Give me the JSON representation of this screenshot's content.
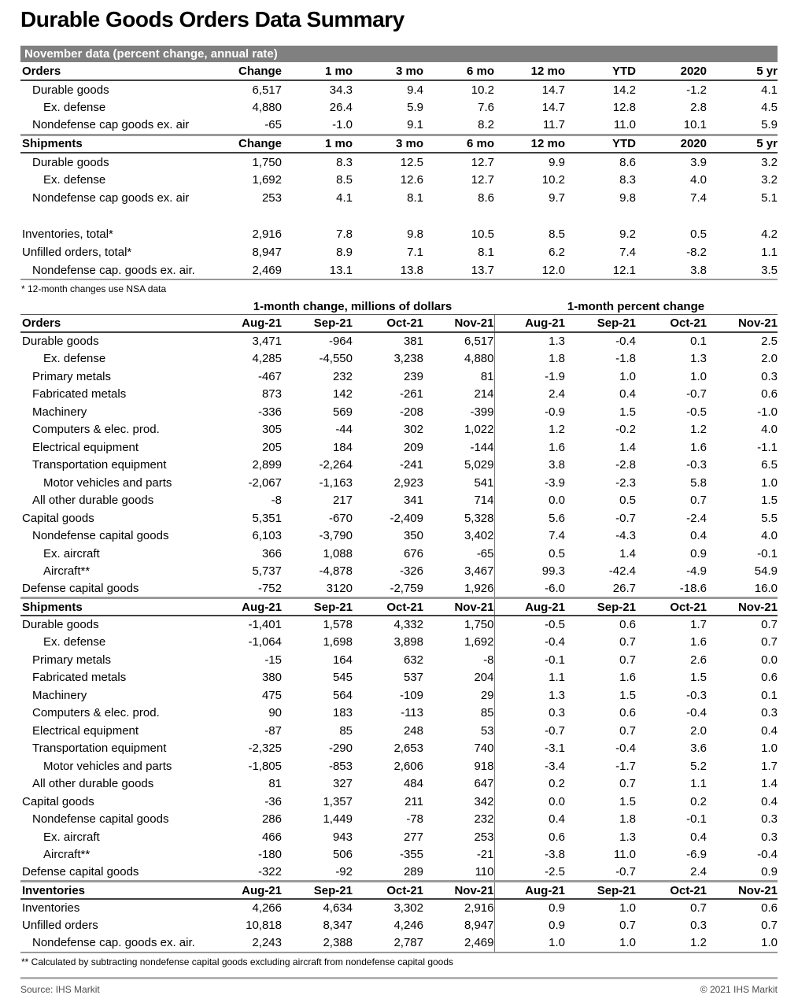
{
  "title": "Durable Goods Orders Data Summary",
  "banner": "November data (percent change, annual rate)",
  "colors": {
    "banner_bg": "#808080",
    "banner_text": "#ffffff"
  },
  "table1": {
    "columns": [
      "Change",
      "1 mo",
      "3 mo",
      "6 mo",
      "12 mo",
      "YTD",
      "2020",
      "5 yr"
    ],
    "sections": [
      {
        "label": "Orders",
        "rows": [
          {
            "label": "Durable goods",
            "indent": 1,
            "values": [
              "6,517",
              "34.3",
              "9.4",
              "10.2",
              "14.7",
              "14.2",
              "-1.2",
              "4.1"
            ]
          },
          {
            "label": "Ex. defense",
            "indent": 2,
            "values": [
              "4,880",
              "26.4",
              "5.9",
              "7.6",
              "14.7",
              "12.8",
              "2.8",
              "4.5"
            ]
          },
          {
            "label": "Nondefense cap goods ex. air",
            "indent": 1,
            "values": [
              "-65",
              "-1.0",
              "9.1",
              "8.2",
              "11.7",
              "11.0",
              "10.1",
              "5.9"
            ]
          }
        ]
      },
      {
        "label": "Shipments",
        "rows": [
          {
            "label": "Durable goods",
            "indent": 1,
            "values": [
              "1,750",
              "8.3",
              "12.5",
              "12.7",
              "9.9",
              "8.6",
              "3.9",
              "3.2"
            ]
          },
          {
            "label": "Ex. defense",
            "indent": 2,
            "values": [
              "1,692",
              "8.5",
              "12.6",
              "12.7",
              "10.2",
              "8.3",
              "4.0",
              "3.2"
            ]
          },
          {
            "label": "Nondefense cap goods ex. air",
            "indent": 1,
            "values": [
              "253",
              "4.1",
              "8.1",
              "8.6",
              "9.7",
              "9.8",
              "7.4",
              "5.1"
            ]
          }
        ]
      },
      {
        "label": null,
        "gap": true,
        "rows": [
          {
            "label": "Inventories, total*",
            "indent": 0,
            "values": [
              "2,916",
              "7.8",
              "9.8",
              "10.5",
              "8.5",
              "9.2",
              "0.5",
              "4.2"
            ]
          },
          {
            "label": "Unfilled orders, total*",
            "indent": 0,
            "values": [
              "8,947",
              "8.9",
              "7.1",
              "8.1",
              "6.2",
              "7.4",
              "-8.2",
              "1.1"
            ]
          },
          {
            "label": "Nondefense cap. goods ex. air.",
            "indent": 1,
            "values": [
              "2,469",
              "13.1",
              "13.8",
              "13.7",
              "12.0",
              "12.1",
              "3.8",
              "3.5"
            ]
          }
        ]
      }
    ],
    "footnote": "* 12-month changes use NSA data"
  },
  "table2": {
    "group_headers": [
      "1-month change, millions of dollars",
      "1-month percent change"
    ],
    "columns": [
      "Aug-21",
      "Sep-21",
      "Oct-21",
      "Nov-21",
      "Aug-21",
      "Sep-21",
      "Oct-21",
      "Nov-21"
    ],
    "sections": [
      {
        "label": "Orders",
        "rows": [
          {
            "label": "Durable goods",
            "indent": 0,
            "values": [
              "3,471",
              "-964",
              "381",
              "6,517",
              "1.3",
              "-0.4",
              "0.1",
              "2.5"
            ]
          },
          {
            "label": "Ex. defense",
            "indent": 2,
            "values": [
              "4,285",
              "-4,550",
              "3,238",
              "4,880",
              "1.8",
              "-1.8",
              "1.3",
              "2.0"
            ]
          },
          {
            "label": "Primary metals",
            "indent": 1,
            "values": [
              "-467",
              "232",
              "239",
              "81",
              "-1.9",
              "1.0",
              "1.0",
              "0.3"
            ]
          },
          {
            "label": "Fabricated metals",
            "indent": 1,
            "values": [
              "873",
              "142",
              "-261",
              "214",
              "2.4",
              "0.4",
              "-0.7",
              "0.6"
            ]
          },
          {
            "label": "Machinery",
            "indent": 1,
            "values": [
              "-336",
              "569",
              "-208",
              "-399",
              "-0.9",
              "1.5",
              "-0.5",
              "-1.0"
            ]
          },
          {
            "label": "Computers & elec. prod.",
            "indent": 1,
            "values": [
              "305",
              "-44",
              "302",
              "1,022",
              "1.2",
              "-0.2",
              "1.2",
              "4.0"
            ]
          },
          {
            "label": "Electrical equipment",
            "indent": 1,
            "values": [
              "205",
              "184",
              "209",
              "-144",
              "1.6",
              "1.4",
              "1.6",
              "-1.1"
            ]
          },
          {
            "label": "Transportation equipment",
            "indent": 1,
            "values": [
              "2,899",
              "-2,264",
              "-241",
              "5,029",
              "3.8",
              "-2.8",
              "-0.3",
              "6.5"
            ]
          },
          {
            "label": "Motor vehicles and parts",
            "indent": 2,
            "values": [
              "-2,067",
              "-1,163",
              "2,923",
              "541",
              "-3.9",
              "-2.3",
              "5.8",
              "1.0"
            ]
          },
          {
            "label": "All other durable goods",
            "indent": 1,
            "values": [
              "-8",
              "217",
              "341",
              "714",
              "0.0",
              "0.5",
              "0.7",
              "1.5"
            ]
          },
          {
            "label": "Capital goods",
            "indent": 0,
            "values": [
              "5,351",
              "-670",
              "-2,409",
              "5,328",
              "5.6",
              "-0.7",
              "-2.4",
              "5.5"
            ]
          },
          {
            "label": "Nondefense capital goods",
            "indent": 1,
            "values": [
              "6,103",
              "-3,790",
              "350",
              "3,402",
              "7.4",
              "-4.3",
              "0.4",
              "4.0"
            ]
          },
          {
            "label": "Ex. aircraft",
            "indent": 2,
            "values": [
              "366",
              "1,088",
              "676",
              "-65",
              "0.5",
              "1.4",
              "0.9",
              "-0.1"
            ]
          },
          {
            "label": "Aircraft**",
            "indent": 2,
            "values": [
              "5,737",
              "-4,878",
              "-326",
              "3,467",
              "99.3",
              "-42.4",
              "-4.9",
              "54.9"
            ]
          },
          {
            "label": "Defense capital goods",
            "indent": 0,
            "values": [
              "-752",
              "3120",
              "-2,759",
              "1,926",
              "-6.0",
              "26.7",
              "-18.6",
              "16.0"
            ]
          }
        ]
      },
      {
        "label": "Shipments",
        "rows": [
          {
            "label": "Durable goods",
            "indent": 0,
            "values": [
              "-1,401",
              "1,578",
              "4,332",
              "1,750",
              "-0.5",
              "0.6",
              "1.7",
              "0.7"
            ]
          },
          {
            "label": "Ex. defense",
            "indent": 2,
            "values": [
              "-1,064",
              "1,698",
              "3,898",
              "1,692",
              "-0.4",
              "0.7",
              "1.6",
              "0.7"
            ]
          },
          {
            "label": "Primary metals",
            "indent": 1,
            "values": [
              "-15",
              "164",
              "632",
              "-8",
              "-0.1",
              "0.7",
              "2.6",
              "0.0"
            ]
          },
          {
            "label": "Fabricated metals",
            "indent": 1,
            "values": [
              "380",
              "545",
              "537",
              "204",
              "1.1",
              "1.6",
              "1.5",
              "0.6"
            ]
          },
          {
            "label": "Machinery",
            "indent": 1,
            "values": [
              "475",
              "564",
              "-109",
              "29",
              "1.3",
              "1.5",
              "-0.3",
              "0.1"
            ]
          },
          {
            "label": "Computers & elec. prod.",
            "indent": 1,
            "values": [
              "90",
              "183",
              "-113",
              "85",
              "0.3",
              "0.6",
              "-0.4",
              "0.3"
            ]
          },
          {
            "label": "Electrical equipment",
            "indent": 1,
            "values": [
              "-87",
              "85",
              "248",
              "53",
              "-0.7",
              "0.7",
              "2.0",
              "0.4"
            ]
          },
          {
            "label": "Transportation equipment",
            "indent": 1,
            "values": [
              "-2,325",
              "-290",
              "2,653",
              "740",
              "-3.1",
              "-0.4",
              "3.6",
              "1.0"
            ]
          },
          {
            "label": "Motor vehicles and parts",
            "indent": 2,
            "values": [
              "-1,805",
              "-853",
              "2,606",
              "918",
              "-3.4",
              "-1.7",
              "5.2",
              "1.7"
            ]
          },
          {
            "label": "All other durable goods",
            "indent": 1,
            "values": [
              "81",
              "327",
              "484",
              "647",
              "0.2",
              "0.7",
              "1.1",
              "1.4"
            ]
          },
          {
            "label": "Capital goods",
            "indent": 0,
            "values": [
              "-36",
              "1,357",
              "211",
              "342",
              "0.0",
              "1.5",
              "0.2",
              "0.4"
            ]
          },
          {
            "label": "Nondefense capital goods",
            "indent": 1,
            "values": [
              "286",
              "1,449",
              "-78",
              "232",
              "0.4",
              "1.8",
              "-0.1",
              "0.3"
            ]
          },
          {
            "label": "Ex. aircraft",
            "indent": 2,
            "values": [
              "466",
              "943",
              "277",
              "253",
              "0.6",
              "1.3",
              "0.4",
              "0.3"
            ]
          },
          {
            "label": "Aircraft**",
            "indent": 2,
            "values": [
              "-180",
              "506",
              "-355",
              "-21",
              "-3.8",
              "11.0",
              "-6.9",
              "-0.4"
            ]
          },
          {
            "label": "Defense capital goods",
            "indent": 0,
            "values": [
              "-322",
              "-92",
              "289",
              "110",
              "-2.5",
              "-0.7",
              "2.4",
              "0.9"
            ]
          }
        ]
      },
      {
        "label": "Inventories",
        "rows": [
          {
            "label": "Inventories",
            "indent": 0,
            "values": [
              "4,266",
              "4,634",
              "3,302",
              "2,916",
              "0.9",
              "1.0",
              "0.7",
              "0.6"
            ]
          },
          {
            "label": "Unfilled orders",
            "indent": 0,
            "values": [
              "10,818",
              "8,347",
              "4,246",
              "8,947",
              "0.9",
              "0.7",
              "0.3",
              "0.7"
            ]
          },
          {
            "label": "Nondefense cap. goods ex. air.",
            "indent": 1,
            "values": [
              "2,243",
              "2,388",
              "2,787",
              "2,469",
              "1.0",
              "1.0",
              "1.2",
              "1.0"
            ]
          }
        ]
      }
    ],
    "footnote": "** Calculated by subtracting nondefense capital goods excluding aircraft from nondefense capital goods"
  },
  "footer": {
    "source": "Source: IHS Markit",
    "copyright": "© 2021 IHS Markit"
  }
}
